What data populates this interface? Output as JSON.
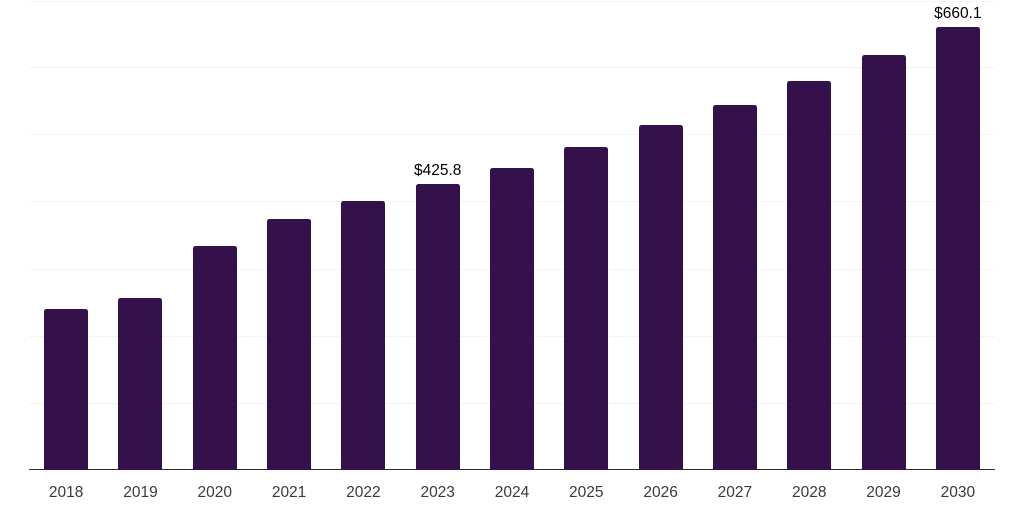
{
  "chart_data": {
    "type": "bar",
    "title": "",
    "xlabel": "",
    "ylabel": "",
    "categories": [
      "2018",
      "2019",
      "2020",
      "2021",
      "2022",
      "2023",
      "2024",
      "2025",
      "2026",
      "2027",
      "2028",
      "2029",
      "2030"
    ],
    "values": [
      239.7,
      255.6,
      333.8,
      373.5,
      399.9,
      425.8,
      450.4,
      481.8,
      514.1,
      544.3,
      579.6,
      618.3,
      660.1
    ],
    "value_prefix": "$",
    "annotations": [
      {
        "category": "2023",
        "label": "$425.8"
      },
      {
        "category": "2030",
        "label": "$660.1"
      }
    ],
    "ylim": [
      0,
      700
    ],
    "grid_step": 100,
    "grid": true,
    "legend": false,
    "y_tick_labels_shown": false,
    "colors": {
      "bar": "#35114B",
      "gridline": "#f4f4f5",
      "axis_line": "#2b2b2b",
      "tick_label": "#3a3a3a",
      "annotation": "#000000",
      "background": "#ffffff"
    }
  }
}
